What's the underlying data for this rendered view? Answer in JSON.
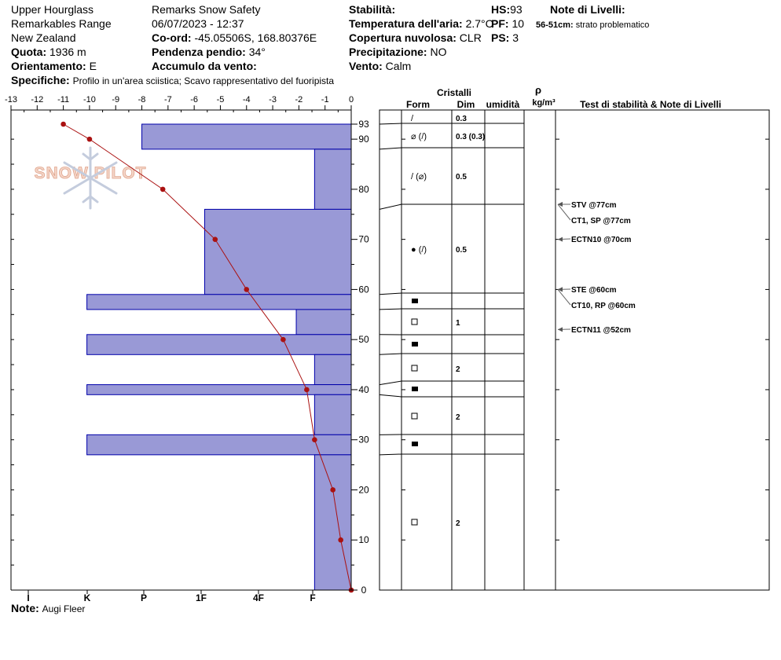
{
  "header": {
    "location": "Upper Hourglass",
    "range": "Remarkables Range",
    "country": "New Zealand",
    "elevation_label": "Quota:",
    "elevation": "1936 m",
    "aspect_label": "Orientamento:",
    "aspect": "E",
    "specifics_label": "Specifiche:",
    "specifics": "Profilo in un'area sciistica; Scavo rappresentativo del fuoripista",
    "org": "Remarks Snow Safety",
    "datetime": "06/07/2023 - 12:37",
    "coord_label": "Co-ord:",
    "coord": "-45.05506S, 168.80376E",
    "slope_label": "Pendenza pendio:",
    "slope": "34°",
    "wind_label": "Accumulo da vento:",
    "wind_loading": "",
    "stability_label": "Stabilità:",
    "stability": "",
    "airtemp_label": "Temperatura dell'aria:",
    "airtemp": "2.7°C",
    "cloud_label": "Copertura nuvolosa:",
    "cloud": "CLR",
    "precip_label": "Precipitazione:",
    "precip": "NO",
    "windv_label": "Vento:",
    "wind": "Calm",
    "hs_label": "HS:",
    "hs": "93",
    "pf_label": "PF:",
    "pf": "10",
    "ps_label": "PS:",
    "ps": "3",
    "layer_notes_title": "Note di Livelli:",
    "layer_note_range": "56-51cm:",
    "layer_note_text": "strato problematico",
    "note_label": "Note:",
    "note": "Augi Fleer"
  },
  "logo_text": "SNOW PILOT",
  "table_headers": {
    "crystals": "Cristalli",
    "form": "Form",
    "size": "Dim",
    "moisture": "umidità",
    "rho": "ρ",
    "density": "kg/m³",
    "tests": "Test di stabilità & Note di Livelli"
  },
  "colors": {
    "hardness_fill": "#9999d6",
    "hardness_stroke": "#0000aa",
    "temp_line": "#aa1111"
  },
  "chart_data": {
    "type": "snow_profile",
    "temperature_axis": {
      "min": -13,
      "max": 0,
      "ticks": [
        "-13",
        "-12",
        "-11",
        "-10",
        "-9",
        "-8",
        "-7",
        "-6",
        "-5",
        "-4",
        "-3",
        "-2",
        "-1",
        "0"
      ]
    },
    "hardness_axis": {
      "labels": [
        "I",
        "K",
        "P",
        "1F",
        "4F",
        "F"
      ],
      "values": [
        5,
        4,
        3,
        2,
        1,
        0
      ]
    },
    "height_axis": {
      "min": 0,
      "max": 93,
      "ticks": [
        "0",
        "10",
        "20",
        "30",
        "40",
        "50",
        "60",
        "70",
        "80",
        "90",
        "93"
      ]
    },
    "hardness_layers": [
      {
        "top": 93,
        "bottom": 88,
        "temp_units": -8.0
      },
      {
        "top": 88,
        "bottom": 76,
        "temp_units": -1.4
      },
      {
        "top": 76,
        "bottom": 59,
        "temp_units": -5.6
      },
      {
        "top": 59,
        "bottom": 56,
        "temp_units": -10.1
      },
      {
        "top": 56,
        "bottom": 51,
        "temp_units": -2.1
      },
      {
        "top": 51,
        "bottom": 47,
        "temp_units": -10.1
      },
      {
        "top": 47,
        "bottom": 41,
        "temp_units": -1.4
      },
      {
        "top": 41,
        "bottom": 39,
        "temp_units": -10.1
      },
      {
        "top": 39,
        "bottom": 31,
        "temp_units": -1.4
      },
      {
        "top": 31,
        "bottom": 27,
        "temp_units": -10.1
      },
      {
        "top": 27,
        "bottom": 0,
        "temp_units": -1.4
      }
    ],
    "temperature_profile": [
      {
        "height": 93,
        "temp": -11.0
      },
      {
        "height": 90,
        "temp": -10.0
      },
      {
        "height": 80,
        "temp": -7.2
      },
      {
        "height": 70,
        "temp": -5.2
      },
      {
        "height": 60,
        "temp": -4.0
      },
      {
        "height": 50,
        "temp": -2.6
      },
      {
        "height": 40,
        "temp": -1.7
      },
      {
        "height": 30,
        "temp": -1.4
      },
      {
        "height": 20,
        "temp": -0.7
      },
      {
        "height": 10,
        "temp": -0.4
      },
      {
        "height": 0,
        "temp": 0.0
      }
    ],
    "grain_layers": [
      {
        "top": 93,
        "bottom": 88,
        "form": "/",
        "form2": "",
        "size": "0.3"
      },
      {
        "top": 88,
        "bottom": 76,
        "form": "⌀",
        "form2": "/",
        "size": "0.3 (0.3)"
      },
      {
        "top": 76,
        "bottom": 59,
        "form": "/",
        "form2": "⌀",
        "size": "0.5"
      },
      {
        "top": 59,
        "bottom": 56,
        "form": "●",
        "form2": "/",
        "size": "0.5"
      },
      {
        "top": 56,
        "bottom": 51,
        "form": "■",
        "form2": "",
        "size": ""
      },
      {
        "top": 51,
        "bottom": 47,
        "form": "□",
        "form2": "",
        "size": "1"
      },
      {
        "top": 47,
        "bottom": 41,
        "form": "■",
        "form2": "",
        "size": ""
      },
      {
        "top": 41,
        "bottom": 39,
        "form": "□",
        "form2": "",
        "size": "2"
      },
      {
        "top": 39,
        "bottom": 31,
        "form": "■",
        "form2": "",
        "size": ""
      },
      {
        "top": 31,
        "bottom": 27,
        "form": "□",
        "form2": "",
        "size": "2"
      },
      {
        "top": 27,
        "bottom": 0,
        "form": "■",
        "form2": "",
        "size": ""
      },
      {
        "top": 27,
        "bottom": 0,
        "form": "□",
        "form2": "",
        "size": "2"
      }
    ],
    "stability_tests": [
      {
        "label": "STV @77cm",
        "height": 77
      },
      {
        "label": "CT1, SP @77cm",
        "height": 77
      },
      {
        "label": "ECTN10 @70cm",
        "height": 70
      },
      {
        "label": "STE @60cm",
        "height": 60
      },
      {
        "label": "CT10, RP @60cm",
        "height": 60
      },
      {
        "label": "ECTN11 @52cm",
        "height": 52
      }
    ]
  }
}
